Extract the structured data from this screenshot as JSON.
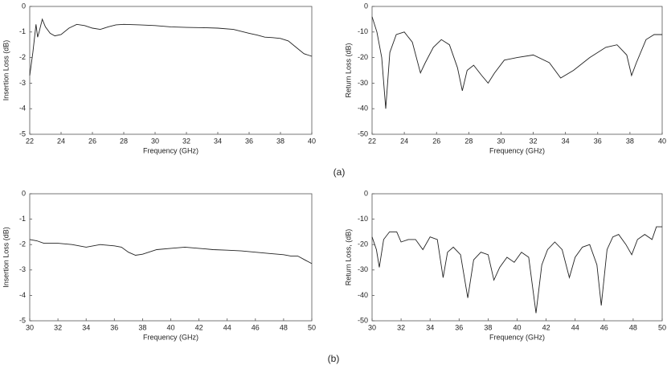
{
  "chart_data": [
    {
      "type": "line",
      "x_label": "Frequency (GHz)",
      "y_label": "Insertion Loss (dB)",
      "color": "#222222",
      "xlim": [
        22,
        40
      ],
      "xticks": [
        22,
        24,
        26,
        28,
        30,
        32,
        34,
        36,
        38,
        40
      ],
      "ylim": [
        -5,
        0
      ],
      "yticks": [
        0,
        -1,
        -2,
        -3,
        -4,
        -5
      ],
      "x": [
        22,
        22.2,
        22.4,
        22.5,
        22.6,
        22.8,
        23.0,
        23.3,
        23.6,
        24.0,
        24.5,
        25.0,
        25.5,
        26.0,
        26.5,
        27.0,
        27.5,
        28,
        29,
        30,
        31,
        32,
        33,
        34,
        35,
        36,
        36.5,
        37,
        37.5,
        38,
        38.5,
        39,
        39.5,
        40
      ],
      "values": [
        -2.7,
        -1.8,
        -0.7,
        -1.2,
        -1.0,
        -0.5,
        -0.8,
        -1.05,
        -1.15,
        -1.1,
        -0.85,
        -0.7,
        -0.75,
        -0.85,
        -0.9,
        -0.8,
        -0.72,
        -0.7,
        -0.72,
        -0.75,
        -0.8,
        -0.82,
        -0.83,
        -0.85,
        -0.9,
        -1.05,
        -1.12,
        -1.2,
        -1.22,
        -1.25,
        -1.35,
        -1.6,
        -1.85,
        -1.95
      ]
    },
    {
      "type": "line",
      "x_label": "Frequency (GHz)",
      "y_label": "Return Loss (dB)",
      "color": "#222222",
      "xlim": [
        22,
        40
      ],
      "xticks": [
        22,
        24,
        26,
        28,
        30,
        32,
        34,
        36,
        38,
        40
      ],
      "ylim": [
        -50,
        0
      ],
      "yticks": [
        0,
        -10,
        -20,
        -30,
        -40,
        -50
      ],
      "x": [
        22,
        22.3,
        22.6,
        22.85,
        23.1,
        23.5,
        24,
        24.5,
        25,
        25.3,
        25.8,
        26.3,
        26.8,
        27.3,
        27.6,
        27.9,
        28.3,
        28.8,
        29.2,
        29.6,
        30.2,
        31,
        32,
        33,
        33.7,
        34.5,
        35.5,
        36.5,
        37.2,
        37.8,
        38.1,
        38.4,
        39,
        39.5,
        40
      ],
      "values": [
        -4,
        -10,
        -20,
        -40,
        -18,
        -11,
        -10,
        -14,
        -26,
        -22,
        -16,
        -13,
        -15,
        -24,
        -33,
        -25,
        -23,
        -27,
        -30,
        -26,
        -21,
        -20,
        -19,
        -22,
        -28,
        -25,
        -20,
        -16,
        -15,
        -19,
        -27,
        -22,
        -13,
        -11,
        -11
      ]
    },
    {
      "type": "line",
      "x_label": "Frequency (GHz)",
      "y_label": "Insertion Loss (dB)",
      "color": "#222222",
      "xlim": [
        30,
        50
      ],
      "xticks": [
        30,
        32,
        34,
        36,
        38,
        40,
        42,
        44,
        46,
        48,
        50
      ],
      "ylim": [
        -5,
        0
      ],
      "yticks": [
        0,
        -1,
        -2,
        -3,
        -4,
        -5
      ],
      "x": [
        30,
        30.5,
        31,
        32,
        33,
        34,
        35,
        36,
        36.5,
        37,
        37.5,
        38,
        39,
        40,
        41,
        42,
        43,
        44,
        45,
        46,
        47,
        48,
        48.5,
        49,
        49.5,
        50
      ],
      "values": [
        -1.8,
        -1.85,
        -1.95,
        -1.95,
        -2.0,
        -2.1,
        -2.0,
        -2.05,
        -2.1,
        -2.3,
        -2.42,
        -2.38,
        -2.2,
        -2.15,
        -2.1,
        -2.15,
        -2.2,
        -2.22,
        -2.25,
        -2.3,
        -2.35,
        -2.4,
        -2.45,
        -2.45,
        -2.6,
        -2.75
      ]
    },
    {
      "type": "line",
      "x_label": "Frequency (GHz)",
      "y_label": "Return Loss, (dB)",
      "color": "#222222",
      "xlim": [
        30,
        50
      ],
      "xticks": [
        30,
        32,
        34,
        36,
        38,
        40,
        42,
        44,
        46,
        48,
        50
      ],
      "ylim": [
        -50,
        0
      ],
      "yticks": [
        0,
        -10,
        -20,
        -30,
        -40,
        -50
      ],
      "x": [
        30,
        30.3,
        30.5,
        30.8,
        31.2,
        31.7,
        32,
        32.5,
        33,
        33.5,
        34,
        34.5,
        34.9,
        35.2,
        35.6,
        36.1,
        36.6,
        37,
        37.5,
        38,
        38.4,
        38.8,
        39.3,
        39.8,
        40.3,
        40.8,
        41.3,
        41.7,
        42.1,
        42.6,
        43.1,
        43.6,
        44,
        44.5,
        45,
        45.5,
        45.8,
        46.2,
        46.6,
        47,
        47.5,
        47.9,
        48.3,
        48.8,
        49.3,
        49.6,
        50
      ],
      "values": [
        -17,
        -22,
        -29,
        -18,
        -15,
        -15,
        -19,
        -18,
        -18,
        -22,
        -17,
        -18,
        -33,
        -23,
        -21,
        -24,
        -41,
        -26,
        -23,
        -24,
        -34,
        -29,
        -25,
        -27,
        -23,
        -25,
        -47,
        -28,
        -22,
        -19,
        -22,
        -33,
        -25,
        -21,
        -20,
        -28,
        -44,
        -22,
        -17,
        -16,
        -20,
        -24,
        -18,
        -16,
        -18,
        -13,
        -13
      ]
    }
  ],
  "panel_labels": [
    "(a)",
    "(b)"
  ]
}
